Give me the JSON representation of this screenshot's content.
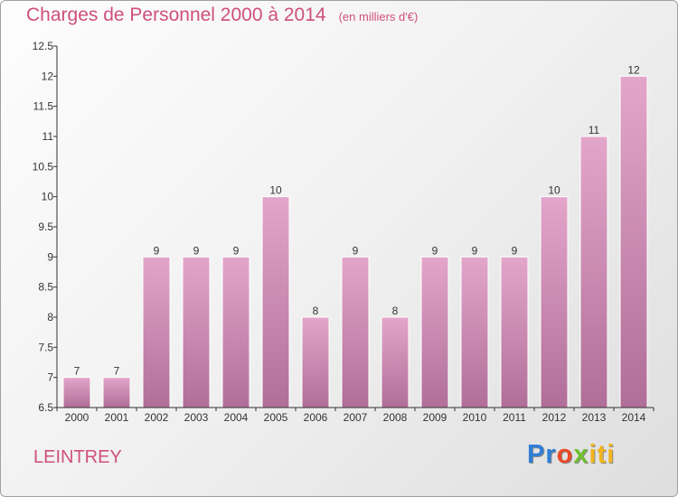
{
  "title": "Charges de Personnel 2000 à 2014",
  "subtitle": "(en milliers d'€)",
  "commune": "LEINTREY",
  "logo": {
    "text": "Proxiti",
    "colors": [
      "#2f7fd6",
      "#e94a27",
      "#6fbf2f",
      "#f2b51c"
    ]
  },
  "colors": {
    "title": "#cf4f7e",
    "bar_top": "#e3a6ca",
    "bar_bottom": "#b06e98",
    "bar_stroke": "#ffffff"
  },
  "chart_data": {
    "type": "bar",
    "title": "Charges de Personnel 2000 à 2014",
    "subtitle": "(en milliers d'€)",
    "xlabel": "",
    "ylabel": "",
    "categories": [
      "2000",
      "2001",
      "2002",
      "2003",
      "2004",
      "2005",
      "2006",
      "2007",
      "2008",
      "2009",
      "2010",
      "2011",
      "2012",
      "2013",
      "2014"
    ],
    "values": [
      7,
      7,
      9,
      9,
      9,
      10,
      8,
      9,
      8,
      9,
      9,
      9,
      10,
      11,
      12
    ],
    "data_labels": [
      "7",
      "7",
      "9",
      "9",
      "9",
      "10",
      "8",
      "9",
      "8",
      "9",
      "9",
      "9",
      "10",
      "11",
      "12"
    ],
    "ylim": [
      6.5,
      12.5
    ],
    "yticks": [
      6.5,
      7,
      7.5,
      8,
      8.5,
      9,
      9.5,
      10,
      10.5,
      11,
      11.5,
      12,
      12.5
    ],
    "ytick_labels": [
      "6.5",
      "7",
      "7.5",
      "8",
      "8.5",
      "9",
      "9.5",
      "10",
      "10.5",
      "11",
      "11.5",
      "12",
      "12.5"
    ],
    "grid": false,
    "legend": "none"
  }
}
